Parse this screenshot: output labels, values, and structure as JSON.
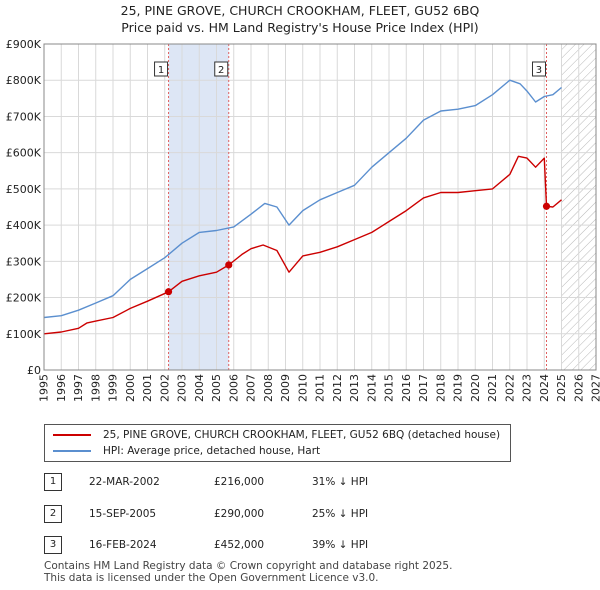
{
  "header": {
    "title_line1": "25, PINE GROVE, CHURCH CROOKHAM, FLEET, GU52 6BQ",
    "title_line2": "Price paid vs. HM Land Registry's House Price Index (HPI)"
  },
  "chart_data": {
    "type": "line",
    "title": "25, PINE GROVE, CHURCH CROOKHAM, FLEET, GU52 6BQ",
    "subtitle": "Price paid vs. HM Land Registry's House Price Index (HPI)",
    "xlabel": "",
    "ylabel": "",
    "xlim": [
      1995,
      2027
    ],
    "ylim": [
      0,
      900000
    ],
    "x_ticks": [
      1995,
      1996,
      1997,
      1998,
      1999,
      2000,
      2001,
      2002,
      2003,
      2004,
      2005,
      2006,
      2007,
      2008,
      2009,
      2010,
      2011,
      2012,
      2013,
      2014,
      2015,
      2016,
      2017,
      2018,
      2019,
      2020,
      2021,
      2022,
      2023,
      2024,
      2025,
      2026,
      2027
    ],
    "y_ticks": [
      {
        "value": 0,
        "label": "£0"
      },
      {
        "value": 100000,
        "label": "£100K"
      },
      {
        "value": 200000,
        "label": "£200K"
      },
      {
        "value": 300000,
        "label": "£300K"
      },
      {
        "value": 400000,
        "label": "£400K"
      },
      {
        "value": 500000,
        "label": "£500K"
      },
      {
        "value": 600000,
        "label": "£600K"
      },
      {
        "value": 700000,
        "label": "£700K"
      },
      {
        "value": 800000,
        "label": "£800K"
      },
      {
        "value": 900000,
        "label": "£900K"
      }
    ],
    "grid": true,
    "forecast_start": 2025.0,
    "series": [
      {
        "name": "25, PINE GROVE, CHURCH CROOKHAM, FLEET, GU52 6BQ (detached house)",
        "color": "#cc0000",
        "x": [
          1995.0,
          1996.0,
          1997.0,
          1997.5,
          1998.0,
          1999.0,
          2000.0,
          2001.0,
          2002.22,
          2003.0,
          2004.0,
          2005.0,
          2005.71,
          2006.5,
          2007.0,
          2007.7,
          2008.5,
          2009.2,
          2010.0,
          2011.0,
          2012.0,
          2013.0,
          2014.0,
          2015.0,
          2016.0,
          2017.0,
          2018.0,
          2019.0,
          2020.0,
          2021.0,
          2022.0,
          2022.5,
          2023.0,
          2023.5,
          2024.0,
          2024.13,
          2024.5,
          2025.0
        ],
        "values": [
          100000,
          105000,
          115000,
          130000,
          135000,
          145000,
          170000,
          190000,
          216000,
          245000,
          260000,
          270000,
          290000,
          320000,
          335000,
          345000,
          330000,
          270000,
          315000,
          325000,
          340000,
          360000,
          380000,
          410000,
          440000,
          475000,
          490000,
          490000,
          495000,
          500000,
          540000,
          590000,
          585000,
          560000,
          585000,
          452000,
          450000,
          470000
        ]
      },
      {
        "name": "HPI: Average price, detached house, Hart",
        "color": "#5b8fcf",
        "x": [
          1995.0,
          1996.0,
          1997.0,
          1998.0,
          1999.0,
          2000.0,
          2001.0,
          2002.0,
          2003.0,
          2004.0,
          2005.0,
          2006.0,
          2007.0,
          2007.8,
          2008.5,
          2009.2,
          2010.0,
          2011.0,
          2012.0,
          2013.0,
          2014.0,
          2015.0,
          2016.0,
          2017.0,
          2018.0,
          2019.0,
          2020.0,
          2021.0,
          2022.0,
          2022.6,
          2023.0,
          2023.5,
          2024.0,
          2024.5,
          2025.0
        ],
        "values": [
          145000,
          150000,
          165000,
          185000,
          205000,
          250000,
          280000,
          310000,
          350000,
          380000,
          385000,
          395000,
          430000,
          460000,
          450000,
          400000,
          440000,
          470000,
          490000,
          510000,
          560000,
          600000,
          640000,
          690000,
          715000,
          720000,
          730000,
          760000,
          800000,
          790000,
          770000,
          740000,
          755000,
          760000,
          780000
        ]
      }
    ],
    "sales": [
      {
        "id": "1",
        "date": "22-MAR-2002",
        "x": 2002.22,
        "price": 216000,
        "price_label": "£216,000",
        "hpi_diff": "31% ↓ HPI"
      },
      {
        "id": "2",
        "date": "15-SEP-2005",
        "x": 2005.71,
        "price": 290000,
        "price_label": "£290,000",
        "hpi_diff": "25% ↓ HPI"
      },
      {
        "id": "3",
        "date": "16-FEB-2024",
        "x": 2024.13,
        "price": 452000,
        "price_label": "£452,000",
        "hpi_diff": "39% ↓ HPI"
      }
    ],
    "shaded_ranges": [
      [
        2002.22,
        2005.71
      ]
    ]
  },
  "legend": {
    "property_label": "25, PINE GROVE, CHURCH CROOKHAM, FLEET, GU52 6BQ (detached house)",
    "hpi_label": "HPI: Average price, detached house, Hart"
  },
  "colors": {
    "property": "#cc0000",
    "hpi": "#5b8fcf",
    "shade": "#dde6f5",
    "grid": "#d9d9d9",
    "sale_line": "#e06060"
  },
  "footer": {
    "line1": "Contains HM Land Registry data © Crown copyright and database right 2025.",
    "line2": "This data is licensed under the Open Government Licence v3.0."
  }
}
